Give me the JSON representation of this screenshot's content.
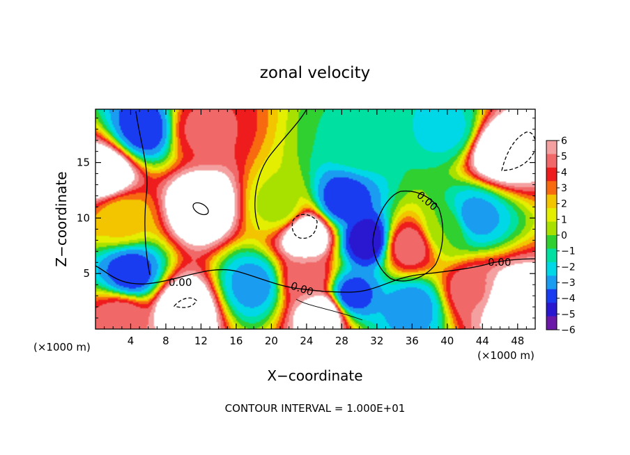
{
  "chart_data": {
    "type": "heatmap",
    "title": "zonal velocity",
    "xlabel": "X−coordinate",
    "ylabel": "Z−coordinate",
    "x_unit_left": "(×1000 m)",
    "x_unit_right": "(×1000 m)",
    "xlim": [
      0,
      50
    ],
    "ylim": [
      0,
      19.8
    ],
    "x_ticks": [
      4,
      8,
      12,
      16,
      20,
      24,
      28,
      32,
      36,
      40,
      44,
      48
    ],
    "y_ticks": [
      5,
      10,
      15
    ],
    "colorbar": {
      "labels": [
        "6",
        "5",
        "4",
        "3",
        "2",
        "1",
        "0",
        "−1",
        "−2",
        "−3",
        "−4",
        "−5",
        "−6"
      ],
      "values": [
        6,
        5,
        4,
        3,
        2,
        1,
        0,
        -1,
        -2,
        -3,
        -4,
        -5,
        -6
      ],
      "colors": [
        "#f4a0a0",
        "#f06868",
        "#ee1c1c",
        "#f76a10",
        "#f3c400",
        "#e4ee00",
        "#a8e000",
        "#30d030",
        "#00e0a0",
        "#00d8e8",
        "#1a9cf0",
        "#1a3cf0",
        "#2a18d0",
        "#6a18a8"
      ]
    },
    "contour_labels": [
      "0.00",
      "0.00",
      "0.00",
      "0.00"
    ],
    "footer": "CONTOUR INTERVAL = 1.000E+01",
    "features": [
      {
        "x": 12,
        "z": 11,
        "value": 8
      },
      {
        "x": 24,
        "z": 8.5,
        "value": 8
      },
      {
        "x": 35.5,
        "z": 7.5,
        "value": 5
      },
      {
        "x": 46,
        "z": 16,
        "value": 8
      },
      {
        "x": 47,
        "z": 2.5,
        "value": 8
      },
      {
        "x": 10,
        "z": 1.8,
        "value": 8
      },
      {
        "x": 26,
        "z": 1.5,
        "value": 8
      },
      {
        "x": 1,
        "z": 14,
        "value": 8
      },
      {
        "x": 3,
        "z": 1,
        "value": 5
      },
      {
        "x": 12,
        "z": 18,
        "value": 4.5
      },
      {
        "x": 24,
        "z": 4.5,
        "value": 5
      },
      {
        "x": 43,
        "z": 3.5,
        "value": 5
      },
      {
        "x": 21,
        "z": 11,
        "value": 0.5
      },
      {
        "x": 30,
        "z": 17,
        "value": -1
      },
      {
        "x": 40,
        "z": 9,
        "value": 0
      },
      {
        "x": 29,
        "z": 3,
        "value": -4
      },
      {
        "x": 18,
        "z": 4,
        "value": -3
      },
      {
        "x": 4,
        "z": 5,
        "value": -4
      },
      {
        "x": 3,
        "z": 10,
        "value": 2
      },
      {
        "x": 5.5,
        "z": 18,
        "value": -4
      },
      {
        "x": 43,
        "z": 10,
        "value": -3
      },
      {
        "x": 40,
        "z": 18,
        "value": -2
      },
      {
        "x": 31,
        "z": 8,
        "value": -5
      },
      {
        "x": 36,
        "z": 2,
        "value": -3
      },
      {
        "x": 28,
        "z": 11.5,
        "value": -4
      }
    ]
  }
}
